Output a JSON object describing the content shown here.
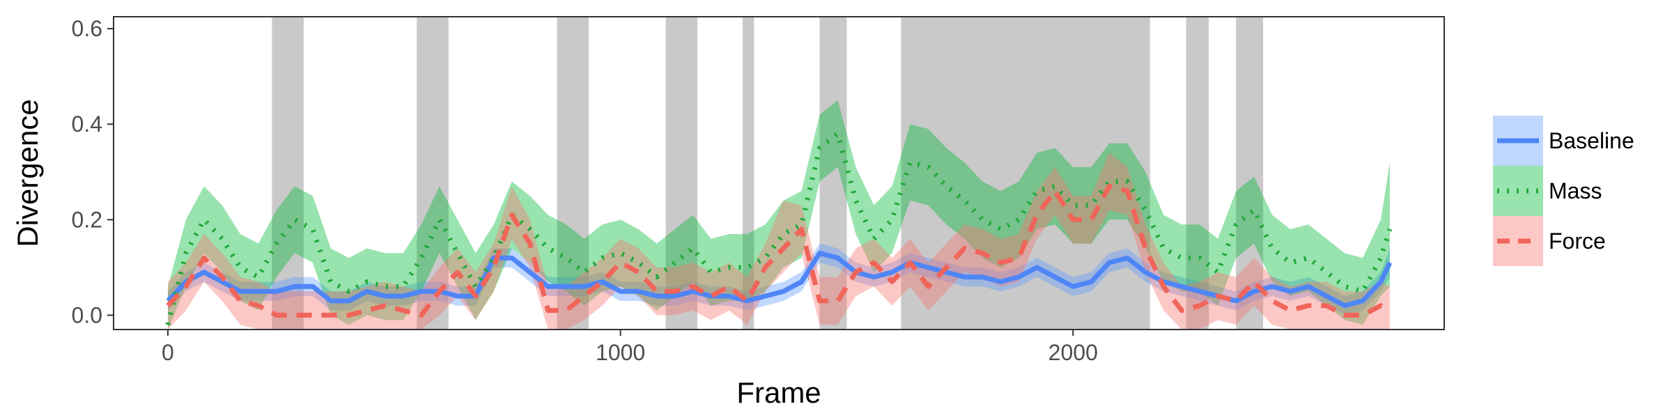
{
  "chart_data": {
    "type": "line",
    "xlabel": "Frame",
    "ylabel": "Divergence",
    "xlim": [
      -120,
      2820
    ],
    "ylim": [
      -0.03,
      0.625
    ],
    "x_ticks": [
      0,
      1000,
      2000
    ],
    "y_ticks": [
      0.0,
      0.2,
      0.4,
      0.6
    ],
    "y_tick_labels": [
      "0.0",
      "0.2",
      "0.4",
      "0.6"
    ],
    "grid": false,
    "legend": "right",
    "shaded_regions": [
      [
        230,
        300
      ],
      [
        550,
        620
      ],
      [
        860,
        930
      ],
      [
        1100,
        1170
      ],
      [
        1270,
        1295
      ],
      [
        1440,
        1500
      ],
      [
        1620,
        2170
      ],
      [
        2250,
        2300
      ],
      [
        2360,
        2420
      ]
    ],
    "x": [
      0,
      40,
      80,
      120,
      160,
      200,
      240,
      280,
      320,
      360,
      400,
      440,
      480,
      520,
      560,
      600,
      640,
      680,
      720,
      760,
      800,
      840,
      880,
      920,
      960,
      1000,
      1040,
      1080,
      1120,
      1160,
      1200,
      1240,
      1280,
      1320,
      1360,
      1400,
      1440,
      1480,
      1520,
      1560,
      1600,
      1640,
      1680,
      1720,
      1760,
      1800,
      1840,
      1880,
      1920,
      1960,
      2000,
      2040,
      2080,
      2120,
      2160,
      2200,
      2240,
      2280,
      2320,
      2360,
      2400,
      2440,
      2480,
      2520,
      2560,
      2600,
      2640,
      2680,
      2700
    ],
    "series": [
      {
        "name": "Baseline",
        "color": "#619CFF",
        "line_color": "#4F86F7",
        "dash": "solid",
        "values": [
          0.03,
          0.07,
          0.09,
          0.07,
          0.05,
          0.05,
          0.05,
          0.06,
          0.06,
          0.03,
          0.03,
          0.05,
          0.04,
          0.04,
          0.05,
          0.05,
          0.04,
          0.04,
          0.12,
          0.12,
          0.09,
          0.06,
          0.06,
          0.06,
          0.07,
          0.05,
          0.05,
          0.04,
          0.04,
          0.05,
          0.04,
          0.04,
          0.03,
          0.04,
          0.05,
          0.07,
          0.13,
          0.12,
          0.09,
          0.08,
          0.09,
          0.11,
          0.1,
          0.09,
          0.08,
          0.08,
          0.07,
          0.08,
          0.1,
          0.08,
          0.06,
          0.07,
          0.11,
          0.12,
          0.09,
          0.07,
          0.06,
          0.05,
          0.04,
          0.03,
          0.05,
          0.06,
          0.05,
          0.06,
          0.04,
          0.02,
          0.03,
          0.07,
          0.11
        ],
        "lower": [
          0.01,
          0.05,
          0.07,
          0.05,
          0.03,
          0.03,
          0.03,
          0.04,
          0.04,
          0.01,
          0.01,
          0.03,
          0.02,
          0.02,
          0.03,
          0.03,
          0.02,
          0.02,
          0.1,
          0.1,
          0.07,
          0.04,
          0.04,
          0.04,
          0.05,
          0.03,
          0.03,
          0.02,
          0.02,
          0.03,
          0.02,
          0.02,
          0.01,
          0.02,
          0.03,
          0.05,
          0.11,
          0.1,
          0.07,
          0.06,
          0.07,
          0.09,
          0.08,
          0.07,
          0.06,
          0.06,
          0.05,
          0.06,
          0.08,
          0.06,
          0.04,
          0.05,
          0.09,
          0.1,
          0.07,
          0.05,
          0.04,
          0.03,
          0.02,
          0.01,
          0.03,
          0.04,
          0.03,
          0.04,
          0.02,
          0.0,
          0.01,
          0.05,
          0.08
        ],
        "upper": [
          0.05,
          0.09,
          0.11,
          0.09,
          0.07,
          0.07,
          0.07,
          0.08,
          0.08,
          0.05,
          0.05,
          0.07,
          0.06,
          0.06,
          0.07,
          0.07,
          0.06,
          0.06,
          0.14,
          0.14,
          0.11,
          0.08,
          0.08,
          0.08,
          0.09,
          0.07,
          0.07,
          0.06,
          0.06,
          0.07,
          0.06,
          0.06,
          0.05,
          0.06,
          0.07,
          0.09,
          0.15,
          0.14,
          0.11,
          0.1,
          0.11,
          0.13,
          0.12,
          0.11,
          0.1,
          0.1,
          0.09,
          0.1,
          0.12,
          0.1,
          0.08,
          0.09,
          0.13,
          0.14,
          0.11,
          0.09,
          0.08,
          0.07,
          0.06,
          0.05,
          0.07,
          0.08,
          0.07,
          0.08,
          0.06,
          0.04,
          0.05,
          0.09,
          0.14
        ]
      },
      {
        "name": "Mass",
        "color": "#00BA38",
        "line_color": "#1FAA3A",
        "dash": "dotted",
        "values": [
          -0.02,
          0.13,
          0.2,
          0.16,
          0.1,
          0.08,
          0.15,
          0.2,
          0.18,
          0.07,
          0.05,
          0.07,
          0.06,
          0.06,
          0.12,
          0.2,
          0.13,
          0.06,
          0.12,
          0.21,
          0.18,
          0.14,
          0.12,
          0.09,
          0.12,
          0.13,
          0.11,
          0.08,
          0.11,
          0.14,
          0.09,
          0.1,
          0.1,
          0.12,
          0.17,
          0.19,
          0.35,
          0.38,
          0.24,
          0.16,
          0.2,
          0.32,
          0.31,
          0.27,
          0.24,
          0.2,
          0.18,
          0.2,
          0.26,
          0.27,
          0.23,
          0.23,
          0.28,
          0.28,
          0.22,
          0.14,
          0.12,
          0.12,
          0.09,
          0.19,
          0.22,
          0.14,
          0.11,
          0.12,
          0.09,
          0.06,
          0.05,
          0.12,
          0.18
        ],
        "lower": [
          -0.03,
          0.06,
          0.13,
          0.09,
          0.03,
          0.01,
          0.08,
          0.13,
          0.11,
          0.0,
          -0.02,
          0.0,
          -0.01,
          -0.01,
          0.05,
          0.13,
          0.06,
          -0.01,
          0.05,
          0.14,
          0.11,
          0.07,
          0.05,
          0.02,
          0.05,
          0.06,
          0.04,
          0.01,
          0.04,
          0.07,
          0.02,
          0.03,
          0.03,
          0.05,
          0.1,
          0.12,
          0.28,
          0.31,
          0.17,
          0.09,
          0.13,
          0.24,
          0.23,
          0.19,
          0.16,
          0.12,
          0.1,
          0.12,
          0.18,
          0.19,
          0.15,
          0.15,
          0.2,
          0.2,
          0.14,
          0.07,
          0.05,
          0.05,
          0.02,
          0.12,
          0.15,
          0.07,
          0.04,
          0.05,
          0.02,
          -0.01,
          -0.02,
          0.04,
          0.06
        ],
        "upper": [
          0.06,
          0.2,
          0.27,
          0.23,
          0.17,
          0.15,
          0.22,
          0.27,
          0.25,
          0.14,
          0.12,
          0.14,
          0.13,
          0.13,
          0.19,
          0.27,
          0.2,
          0.13,
          0.19,
          0.28,
          0.25,
          0.21,
          0.19,
          0.16,
          0.19,
          0.2,
          0.18,
          0.15,
          0.18,
          0.21,
          0.16,
          0.17,
          0.17,
          0.19,
          0.24,
          0.26,
          0.42,
          0.45,
          0.31,
          0.23,
          0.27,
          0.4,
          0.39,
          0.35,
          0.32,
          0.28,
          0.26,
          0.28,
          0.34,
          0.35,
          0.31,
          0.31,
          0.36,
          0.36,
          0.3,
          0.21,
          0.19,
          0.19,
          0.16,
          0.26,
          0.29,
          0.21,
          0.18,
          0.19,
          0.16,
          0.13,
          0.12,
          0.2,
          0.32
        ]
      },
      {
        "name": "Force",
        "color": "#F8766D",
        "line_color": "#F0655A",
        "dash": "dashed",
        "values": [
          0.02,
          0.06,
          0.12,
          0.08,
          0.03,
          0.02,
          0.0,
          0.0,
          0.0,
          0.0,
          0.0,
          0.01,
          0.02,
          0.01,
          0.0,
          0.05,
          0.09,
          0.04,
          0.1,
          0.21,
          0.15,
          0.01,
          0.01,
          0.04,
          0.07,
          0.11,
          0.09,
          0.05,
          0.05,
          0.06,
          0.04,
          0.06,
          0.03,
          0.1,
          0.14,
          0.18,
          0.03,
          0.03,
          0.09,
          0.11,
          0.07,
          0.11,
          0.06,
          0.1,
          0.14,
          0.13,
          0.11,
          0.12,
          0.21,
          0.26,
          0.2,
          0.2,
          0.27,
          0.26,
          0.14,
          0.06,
          0.01,
          0.02,
          0.04,
          0.03,
          0.07,
          0.03,
          0.01,
          0.02,
          0.02,
          0.0,
          0.0,
          0.02,
          0.01
        ],
        "lower": [
          -0.03,
          0.01,
          0.07,
          0.03,
          -0.02,
          -0.03,
          -0.03,
          -0.03,
          -0.03,
          -0.03,
          -0.03,
          -0.03,
          -0.03,
          -0.03,
          -0.03,
          0.0,
          0.04,
          -0.01,
          0.05,
          0.16,
          0.1,
          -0.03,
          -0.03,
          -0.01,
          0.02,
          0.06,
          0.04,
          0.0,
          0.0,
          0.01,
          -0.01,
          0.01,
          -0.02,
          0.05,
          0.09,
          0.13,
          -0.02,
          -0.02,
          0.04,
          0.06,
          0.02,
          0.06,
          0.01,
          0.05,
          0.09,
          0.08,
          0.06,
          0.07,
          0.16,
          0.21,
          0.15,
          0.15,
          0.22,
          0.21,
          0.09,
          0.01,
          -0.03,
          -0.03,
          -0.01,
          -0.02,
          0.02,
          -0.02,
          -0.03,
          -0.03,
          -0.03,
          -0.03,
          -0.03,
          -0.03,
          -0.03
        ],
        "upper": [
          0.07,
          0.11,
          0.17,
          0.13,
          0.08,
          0.07,
          0.05,
          0.05,
          0.05,
          0.05,
          0.05,
          0.06,
          0.07,
          0.06,
          0.05,
          0.1,
          0.14,
          0.09,
          0.15,
          0.27,
          0.2,
          0.06,
          0.06,
          0.09,
          0.12,
          0.16,
          0.14,
          0.1,
          0.1,
          0.11,
          0.09,
          0.11,
          0.08,
          0.15,
          0.24,
          0.23,
          0.08,
          0.08,
          0.14,
          0.16,
          0.12,
          0.16,
          0.11,
          0.15,
          0.19,
          0.18,
          0.16,
          0.17,
          0.26,
          0.31,
          0.25,
          0.25,
          0.34,
          0.31,
          0.19,
          0.11,
          0.06,
          0.07,
          0.09,
          0.08,
          0.12,
          0.08,
          0.06,
          0.07,
          0.07,
          0.05,
          0.05,
          0.07,
          0.06
        ]
      }
    ]
  }
}
